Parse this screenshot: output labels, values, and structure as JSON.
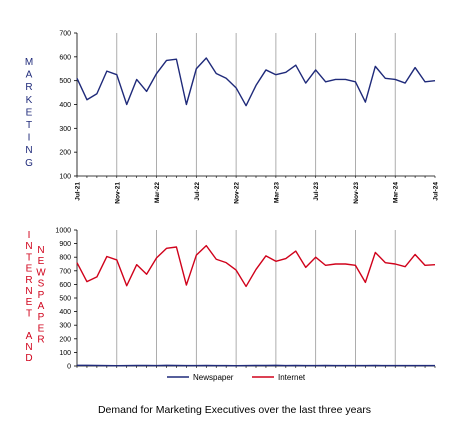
{
  "caption": "Demand for Marketing Executives over the last three years",
  "colors": {
    "newspaper": "#1f2a7a",
    "internet": "#d0021b",
    "marketing": "#1f2a7a",
    "axis": "#000000",
    "gridline": "#999999"
  },
  "chart_data": [
    {
      "type": "line",
      "side_label": "MARKETING",
      "x": [
        "Jul-21",
        "Aug-21",
        "Sep-21",
        "Oct-21",
        "Nov-21",
        "Dec-21",
        "Jan-22",
        "Feb-22",
        "Mar-22",
        "Apr-22",
        "May-22",
        "Jun-22",
        "Jul-22",
        "Aug-22",
        "Sep-22",
        "Oct-22",
        "Nov-22",
        "Dec-22",
        "Jan-23",
        "Feb-23",
        "Mar-23",
        "Apr-23",
        "May-23",
        "Jun-23",
        "Jul-23",
        "Aug-23",
        "Sep-23",
        "Oct-23",
        "Nov-23",
        "Dec-23",
        "Jan-24",
        "Feb-24",
        "Mar-24",
        "Apr-24",
        "May-24",
        "Jun-24",
        "Jul-24"
      ],
      "x_tick_labels": [
        "Jul-21",
        "Nov-21",
        "Mar-22",
        "Jul-22",
        "Nov-22",
        "Mar-23",
        "Jul-23",
        "Nov-23",
        "Mar-24",
        "Jul-24"
      ],
      "series": [
        {
          "values": [
            510,
            420,
            445,
            540,
            525,
            400,
            505,
            455,
            530,
            585,
            590,
            400,
            550,
            595,
            530,
            510,
            470,
            395,
            480,
            545,
            525,
            535,
            565,
            490,
            545,
            495,
            505,
            505,
            495,
            410,
            560,
            510,
            505,
            490,
            555,
            495,
            500
          ]
        }
      ],
      "ylim": [
        100,
        700
      ],
      "y_ticks": [
        100,
        200,
        300,
        400,
        500,
        600,
        700
      ],
      "grid": "vertical at x tick labels"
    },
    {
      "type": "line",
      "side_label_left": "INTERNET AND",
      "side_label_right": "NEWSPAPER",
      "x": [
        "Jul-21",
        "Aug-21",
        "Sep-21",
        "Oct-21",
        "Nov-21",
        "Dec-21",
        "Jan-22",
        "Feb-22",
        "Mar-22",
        "Apr-22",
        "May-22",
        "Jun-22",
        "Jul-22",
        "Aug-22",
        "Sep-22",
        "Oct-22",
        "Nov-22",
        "Dec-22",
        "Jan-23",
        "Feb-23",
        "Mar-23",
        "Apr-23",
        "May-23",
        "Jun-23",
        "Jul-23",
        "Aug-23",
        "Sep-23",
        "Oct-23",
        "Nov-23",
        "Dec-23",
        "Jan-24",
        "Feb-24",
        "Mar-24",
        "Apr-24",
        "May-24",
        "Jun-24",
        "Jul-24"
      ],
      "series": [
        {
          "name": "Newspaper",
          "values": [
            5,
            5,
            4,
            3,
            2,
            3,
            4,
            4,
            3,
            5,
            4,
            3,
            3,
            4,
            3,
            3,
            2,
            3,
            4,
            4,
            5,
            3,
            4,
            3,
            3,
            4,
            3,
            3,
            3,
            3,
            4,
            3,
            3,
            3,
            3,
            3,
            3
          ]
        },
        {
          "name": "Internet",
          "values": [
            760,
            620,
            655,
            805,
            780,
            590,
            745,
            675,
            795,
            865,
            875,
            595,
            815,
            885,
            785,
            760,
            705,
            585,
            710,
            810,
            770,
            790,
            845,
            725,
            800,
            740,
            750,
            750,
            740,
            615,
            835,
            760,
            750,
            730,
            820,
            740,
            745
          ]
        }
      ],
      "ylim": [
        0,
        1000
      ],
      "y_ticks": [
        0,
        100,
        200,
        300,
        400,
        500,
        600,
        700,
        800,
        900,
        1000
      ],
      "legend": "bottom-center",
      "grid": "vertical at top chart x tick labels"
    }
  ]
}
